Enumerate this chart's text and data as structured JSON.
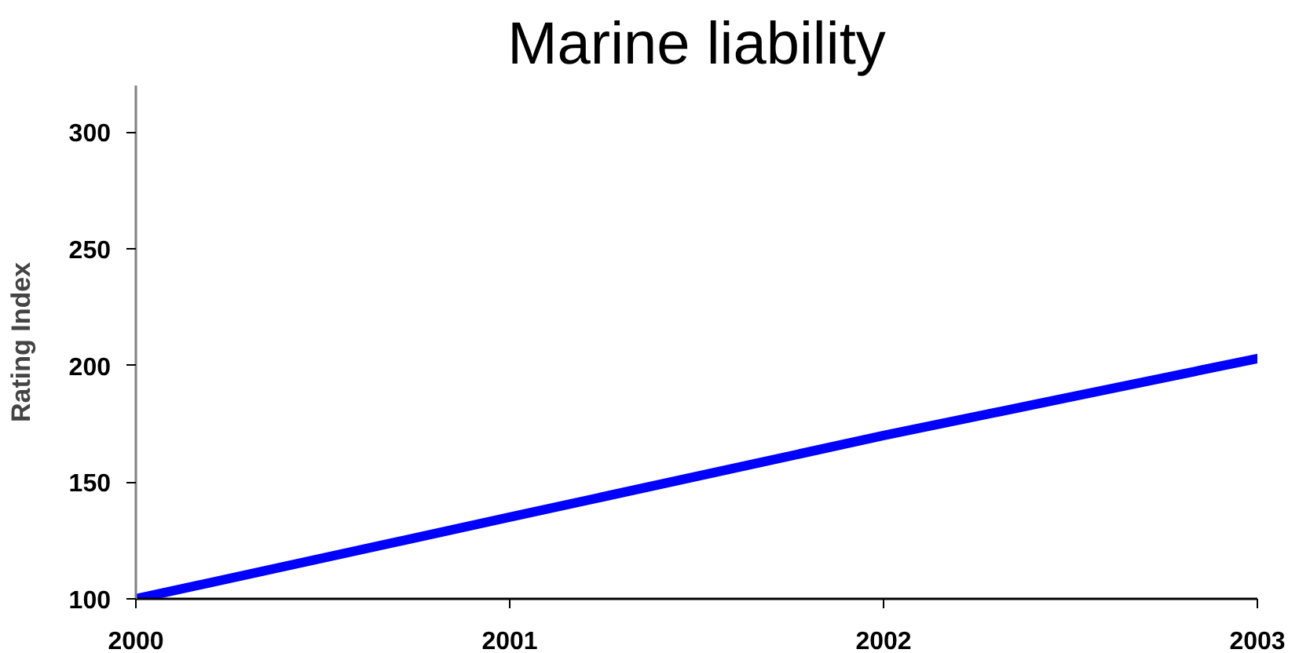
{
  "chart_data": {
    "type": "line",
    "title": "Marine liability",
    "ylabel": "Rating Index",
    "x": [
      2000,
      2001,
      2002,
      2003
    ],
    "series": [
      {
        "color": "#0000ff",
        "values": [
          100,
          135,
          170,
          203
        ]
      }
    ],
    "xlim": [
      2000,
      2003
    ],
    "xticks": [
      2000,
      2001,
      2002,
      2003
    ],
    "ylim": [
      100,
      320
    ],
    "yticks": [
      100,
      150,
      200,
      250,
      300
    ],
    "grid": false,
    "line_style": "solid"
  }
}
